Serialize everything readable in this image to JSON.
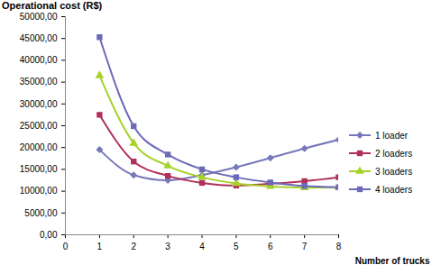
{
  "chart_data": {
    "type": "line",
    "title": "Operational cost (R$)",
    "x_label": "Number of trucks",
    "x": [
      1,
      2,
      3,
      4,
      5,
      6,
      7,
      8
    ],
    "series": [
      {
        "name": "1 loader",
        "color": "#7777bb",
        "marker": "diamond",
        "values": [
          19500,
          13700,
          12500,
          13700,
          15500,
          17600,
          19800,
          21800
        ]
      },
      {
        "name": "2 loaders",
        "color": "#b0305a",
        "marker": "square",
        "values": [
          27500,
          16800,
          13500,
          11900,
          11300,
          11700,
          12300,
          13200
        ]
      },
      {
        "name": "3 loaders",
        "color": "#a6d22a",
        "marker": "triangle",
        "values": [
          36500,
          21000,
          15800,
          13200,
          11800,
          11100,
          10800,
          10900
        ]
      },
      {
        "name": "4 loaders",
        "color": "#6a6ab8",
        "marker": "square",
        "values": [
          45300,
          24900,
          18400,
          15000,
          13200,
          12000,
          11200,
          10900
        ]
      }
    ],
    "xlim": [
      0,
      8
    ],
    "xticks": [
      0,
      1,
      2,
      3,
      4,
      5,
      6,
      7,
      8
    ],
    "ylim": [
      0,
      50000
    ],
    "yticks": [
      {
        "value": 0,
        "label": "0,00"
      },
      {
        "value": 5000,
        "label": "5000,00"
      },
      {
        "value": 10000,
        "label": "10000,00"
      },
      {
        "value": 15000,
        "label": "15000,00"
      },
      {
        "value": 20000,
        "label": "20000,00"
      },
      {
        "value": 25000,
        "label": "25000,00"
      },
      {
        "value": 30000,
        "label": "30000,00"
      },
      {
        "value": 35000,
        "label": "35000,00"
      },
      {
        "value": 40000,
        "label": "40000,00"
      },
      {
        "value": 45000,
        "label": "45000,00"
      },
      {
        "value": 50000,
        "label": "50000,00"
      }
    ],
    "grid": false,
    "legend": "right",
    "line_style": "smooth"
  }
}
